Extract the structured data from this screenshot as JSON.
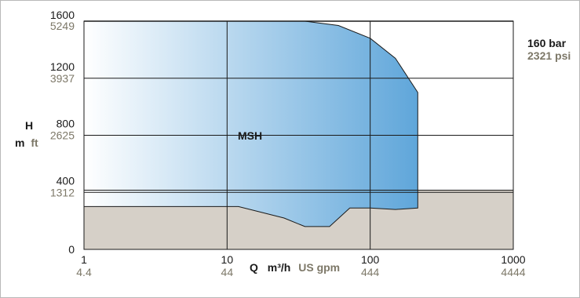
{
  "chart_data": {
    "type": "area",
    "title": "",
    "series_label": "MSH",
    "x_scale": "log",
    "xlim": [
      1,
      1000
    ],
    "ylim": [
      0,
      1600
    ],
    "x_ticks": [
      {
        "value": 1,
        "primary": "1",
        "secondary": "4.4"
      },
      {
        "value": 10,
        "primary": "10",
        "secondary": "44"
      },
      {
        "value": 100,
        "primary": "100",
        "secondary": "444"
      },
      {
        "value": 1000,
        "primary": "1000",
        "secondary": "4444"
      }
    ],
    "y_ticks": [
      {
        "value": 0,
        "primary": "0",
        "secondary": ""
      },
      {
        "value": 400,
        "primary": "400",
        "secondary": "1312"
      },
      {
        "value": 800,
        "primary": "800",
        "secondary": "2625"
      },
      {
        "value": 1200,
        "primary": "1200",
        "secondary": "3937"
      },
      {
        "value": 1600,
        "primary": "1600",
        "secondary": "5249"
      }
    ],
    "xlabel": {
      "symbol": "Q",
      "unit": "m³/h",
      "unit_alt": "US gpm"
    },
    "ylabel": {
      "symbol": "H",
      "unit": "m",
      "unit_alt": "ft"
    },
    "pressure_limit": {
      "primary": "160 bar",
      "secondary": "2321 psi",
      "value": 1600
    },
    "lower_band": {
      "y": 400,
      "y_top": 415
    },
    "grid": true,
    "envelope_top": [
      {
        "x": 1,
        "y": 1600
      },
      {
        "x": 35,
        "y": 1600
      },
      {
        "x": 60,
        "y": 1570
      },
      {
        "x": 100,
        "y": 1480
      },
      {
        "x": 150,
        "y": 1340
      },
      {
        "x": 215,
        "y": 1100
      },
      {
        "x": 215,
        "y": 290
      }
    ],
    "envelope_bottom": [
      {
        "x": 215,
        "y": 290
      },
      {
        "x": 150,
        "y": 280
      },
      {
        "x": 100,
        "y": 290
      },
      {
        "x": 72,
        "y": 290
      },
      {
        "x": 52,
        "y": 160
      },
      {
        "x": 35,
        "y": 160
      },
      {
        "x": 25,
        "y": 220
      },
      {
        "x": 12,
        "y": 300
      },
      {
        "x": 1,
        "y": 300
      }
    ],
    "colors": {
      "plot_bg": "#d6d0c8",
      "fill_start": "#ffffff",
      "fill_end": "#5fa6da",
      "grid": "#1a1a1a",
      "secondary_text": "#7d7868"
    }
  }
}
